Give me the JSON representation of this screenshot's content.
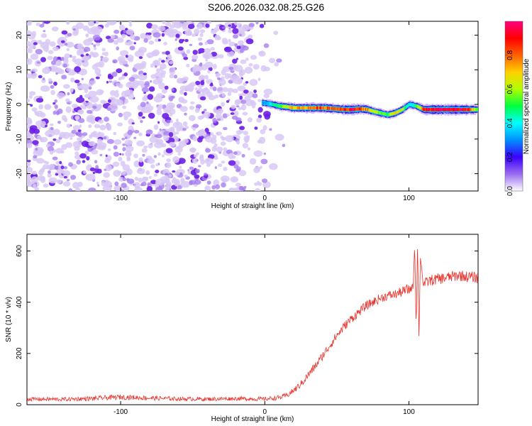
{
  "title": "S206.2026.032.08.25.G26",
  "colors": {
    "axis": "#000000",
    "snr_line": "#e8312a",
    "scatter_light": "#d8c8f5",
    "scatter_mid": "#a67ef0",
    "scatter_dark": "#6a1ee6"
  },
  "chart_data": [
    {
      "type": "heatmap",
      "title": "S206.2026.032.08.25.G26",
      "xlabel": "Height of straight line (km)",
      "ylabel": "Frequency (Hz)",
      "xlim": [
        -165,
        148
      ],
      "ylim": [
        -25,
        24
      ],
      "xticks": [
        -100,
        0,
        100
      ],
      "xtick_labels": [
        "-100",
        "0",
        "100"
      ],
      "yticks": [
        -20,
        -10,
        0,
        10,
        20
      ],
      "ytick_labels": [
        "-20",
        "-10",
        "0",
        "10",
        "20"
      ],
      "noise_region_x": [
        -165,
        15
      ],
      "signal_track": {
        "x": [
          -2,
          5,
          10,
          15,
          20,
          30,
          40,
          50,
          55,
          60,
          65,
          70,
          75,
          80,
          85,
          90,
          95,
          100,
          105,
          110,
          120,
          130,
          140,
          148
        ],
        "freq": [
          0.5,
          0,
          -0.5,
          -0.7,
          -1,
          -1,
          -1,
          -1.3,
          -1.5,
          -1.5,
          -1.3,
          -1.4,
          -2,
          -2.5,
          -3,
          -2.5,
          -1.5,
          0,
          -0.5,
          -1.5,
          -1.5,
          -1.5,
          -1.5,
          -1.5
        ],
        "amplitude": [
          0.3,
          0.4,
          0.5,
          0.65,
          0.7,
          0.75,
          0.8,
          0.8,
          0.85,
          0.9,
          0.85,
          0.75,
          0.6,
          0.55,
          0.5,
          0.65,
          0.6,
          0.35,
          0.5,
          0.8,
          0.95,
          0.9,
          0.85,
          0.5
        ]
      },
      "colorbar": {
        "label": "Normalized spectral amplitude",
        "range": [
          0,
          1
        ],
        "ticks": [
          0.0,
          0.2,
          0.4,
          0.6,
          0.8
        ],
        "tick_labels": [
          "0.0",
          "0.2",
          "0.4",
          "0.6",
          "0.8"
        ],
        "colors": [
          "#ffffff",
          "#9a6cf0",
          "#3a00ff",
          "#0090ff",
          "#00ffff",
          "#00ff40",
          "#b0ff00",
          "#ffd000",
          "#ff6000",
          "#ff0000",
          "#ff0080"
        ]
      }
    },
    {
      "type": "line",
      "xlabel": "Height of straight line (km)",
      "ylabel": "SNR (10 * v/v)",
      "xlim": [
        -165,
        148
      ],
      "ylim": [
        0,
        665
      ],
      "xticks": [
        -100,
        0,
        100
      ],
      "xtick_labels": [
        "-100",
        "0",
        "100"
      ],
      "yticks": [
        0,
        200,
        400,
        600
      ],
      "ytick_labels": [
        "0",
        "200",
        "400",
        "600"
      ],
      "series": [
        {
          "name": "SNR",
          "x": [
            -165,
            -140,
            -120,
            -100,
            -80,
            -60,
            -40,
            -20,
            0,
            10,
            15,
            20,
            25,
            30,
            35,
            40,
            45,
            50,
            55,
            60,
            65,
            70,
            75,
            80,
            85,
            90,
            95,
            100,
            103,
            104,
            105,
            106,
            107,
            108,
            110,
            115,
            120,
            125,
            130,
            135,
            140,
            148
          ],
          "values": [
            22,
            21,
            24,
            30,
            26,
            23,
            22,
            24,
            22,
            28,
            35,
            55,
            80,
            115,
            150,
            190,
            230,
            270,
            305,
            335,
            360,
            385,
            400,
            415,
            425,
            430,
            440,
            450,
            460,
            630,
            300,
            630,
            260,
            580,
            470,
            485,
            490,
            495,
            500,
            505,
            500,
            495
          ],
          "noise_amplitude": [
            8,
            8,
            9,
            10,
            9,
            8,
            8,
            8,
            8,
            9,
            10,
            12,
            14,
            16,
            16,
            17,
            17,
            18,
            18,
            18,
            18,
            18,
            18,
            18,
            18,
            18,
            20,
            22,
            10,
            10,
            10,
            10,
            10,
            10,
            20,
            22,
            22,
            22,
            22,
            22,
            22,
            22
          ]
        }
      ]
    }
  ]
}
